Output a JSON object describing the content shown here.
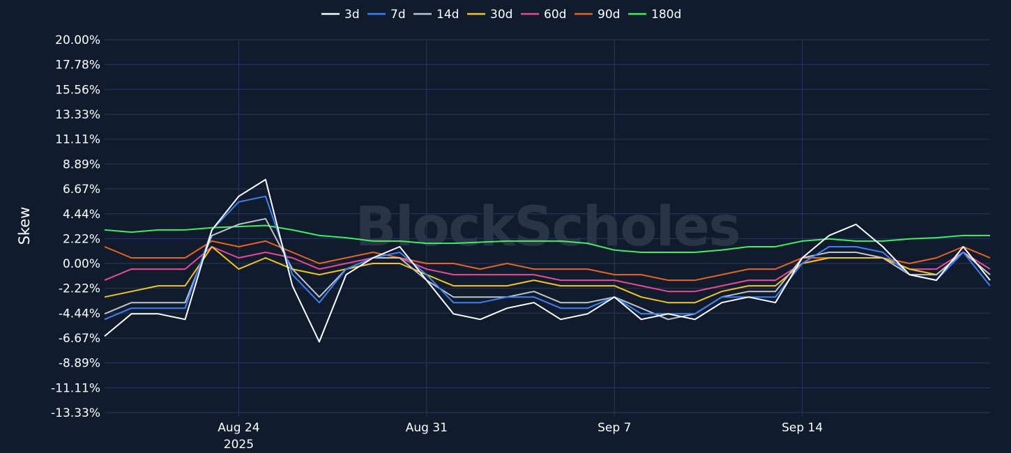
{
  "colors": {
    "background": "#111b2e",
    "grid": "#26395e",
    "text": "#ffffff"
  },
  "watermark": "BlockScholes",
  "chart_data": {
    "type": "line",
    "ylabel": "Skew",
    "xlabel": "",
    "y_ticks": [
      "20.00%",
      "17.78%",
      "15.56%",
      "13.33%",
      "11.11%",
      "8.89%",
      "6.67%",
      "4.44%",
      "2.22%",
      "0.00%",
      "-2.22%",
      "-4.44%",
      "-6.67%",
      "-8.89%",
      "-11.11%",
      "-13.33%"
    ],
    "ylim": [
      -13.33,
      20.0
    ],
    "xlim": [
      "2025-08-19",
      "2025-09-21"
    ],
    "x_ticks": [
      {
        "date": "2025-08-24",
        "label": "Aug 24",
        "sublabel": "2025"
      },
      {
        "date": "2025-08-31",
        "label": "Aug 31",
        "sublabel": ""
      },
      {
        "date": "2025-09-07",
        "label": "Sep 7",
        "sublabel": ""
      },
      {
        "date": "2025-09-14",
        "label": "Sep 14",
        "sublabel": ""
      }
    ],
    "legend_position": "top-center",
    "grid": true,
    "dates": [
      "2025-08-19",
      "2025-08-20",
      "2025-08-21",
      "2025-08-22",
      "2025-08-23",
      "2025-08-24",
      "2025-08-25",
      "2025-08-26",
      "2025-08-27",
      "2025-08-28",
      "2025-08-29",
      "2025-08-30",
      "2025-08-31",
      "2025-09-01",
      "2025-09-02",
      "2025-09-03",
      "2025-09-04",
      "2025-09-05",
      "2025-09-06",
      "2025-09-07",
      "2025-09-08",
      "2025-09-09",
      "2025-09-10",
      "2025-09-11",
      "2025-09-12",
      "2025-09-13",
      "2025-09-14",
      "2025-09-15",
      "2025-09-16",
      "2025-09-17",
      "2025-09-18",
      "2025-09-19",
      "2025-09-20",
      "2025-09-21"
    ],
    "series": [
      {
        "name": "3d",
        "color": "#ffffff",
        "values": [
          -6.5,
          -4.5,
          -4.5,
          -5.0,
          3.0,
          6.0,
          7.5,
          -2.0,
          -7.0,
          -1.0,
          0.5,
          1.5,
          -1.5,
          -4.5,
          -5.0,
          -4.0,
          -3.5,
          -5.0,
          -4.5,
          -3.0,
          -5.0,
          -4.5,
          -5.0,
          -3.5,
          -3.0,
          -3.5,
          0.5,
          2.5,
          3.5,
          1.5,
          -1.0,
          -1.5,
          1.5,
          -1.5
        ]
      },
      {
        "name": "7d",
        "color": "#3b82f6",
        "values": [
          -5.0,
          -4.0,
          -4.0,
          -4.0,
          3.0,
          5.5,
          6.0,
          -1.0,
          -3.5,
          -0.5,
          0.5,
          1.0,
          -1.0,
          -3.5,
          -3.5,
          -3.0,
          -3.0,
          -4.0,
          -4.0,
          -3.0,
          -4.5,
          -4.5,
          -4.5,
          -3.0,
          -3.0,
          -3.0,
          0.0,
          1.5,
          1.5,
          1.0,
          -1.0,
          -1.5,
          1.0,
          -2.0
        ]
      },
      {
        "name": "14d",
        "color": "#c0c4cc",
        "values": [
          -4.5,
          -3.5,
          -3.5,
          -3.5,
          2.5,
          3.5,
          4.0,
          -0.5,
          -3.0,
          -0.5,
          0.5,
          0.5,
          -1.5,
          -3.0,
          -3.0,
          -3.0,
          -2.5,
          -3.5,
          -3.5,
          -3.0,
          -4.0,
          -5.0,
          -4.5,
          -3.0,
          -2.5,
          -2.5,
          0.5,
          1.0,
          1.0,
          0.5,
          -1.0,
          -1.0,
          1.0,
          -1.0
        ]
      },
      {
        "name": "30d",
        "color": "#f5c518",
        "values": [
          -3.0,
          -2.5,
          -2.0,
          -2.0,
          1.5,
          -0.5,
          0.5,
          -0.5,
          -1.0,
          -0.5,
          0.0,
          0.0,
          -1.0,
          -2.0,
          -2.0,
          -2.0,
          -1.5,
          -2.0,
          -2.0,
          -2.0,
          -3.0,
          -3.5,
          -3.5,
          -2.5,
          -2.0,
          -2.0,
          0.0,
          0.5,
          0.5,
          0.5,
          -0.5,
          -1.0,
          1.0,
          -1.0
        ]
      },
      {
        "name": "60d",
        "color": "#ec4899",
        "values": [
          -1.5,
          -0.5,
          -0.5,
          -0.5,
          1.5,
          0.5,
          1.0,
          0.5,
          -0.5,
          0.0,
          0.5,
          0.5,
          -0.5,
          -1.0,
          -1.0,
          -1.0,
          -1.0,
          -1.5,
          -1.5,
          -1.5,
          -2.0,
          -2.5,
          -2.5,
          -2.0,
          -1.5,
          -1.5,
          0.0,
          0.5,
          0.5,
          0.5,
          -0.5,
          -0.5,
          1.0,
          -0.5
        ]
      },
      {
        "name": "90d",
        "color": "#e8651a",
        "values": [
          1.5,
          0.5,
          0.5,
          0.5,
          2.0,
          1.5,
          2.0,
          1.0,
          0.0,
          0.5,
          1.0,
          0.5,
          0.0,
          0.0,
          -0.5,
          0.0,
          -0.5,
          -0.5,
          -0.5,
          -1.0,
          -1.0,
          -1.5,
          -1.5,
          -1.0,
          -0.5,
          -0.5,
          0.5,
          0.5,
          0.5,
          0.5,
          0.0,
          0.5,
          1.5,
          0.5
        ]
      },
      {
        "name": "180d",
        "color": "#3ef060",
        "values": [
          3.0,
          2.8,
          3.0,
          3.0,
          3.2,
          3.3,
          3.4,
          3.0,
          2.5,
          2.3,
          2.0,
          2.0,
          1.8,
          1.8,
          1.9,
          2.0,
          2.0,
          2.0,
          1.8,
          1.2,
          1.0,
          1.0,
          1.0,
          1.2,
          1.5,
          1.5,
          2.0,
          2.2,
          2.0,
          2.0,
          2.2,
          2.3,
          2.5,
          2.5
        ]
      }
    ]
  }
}
